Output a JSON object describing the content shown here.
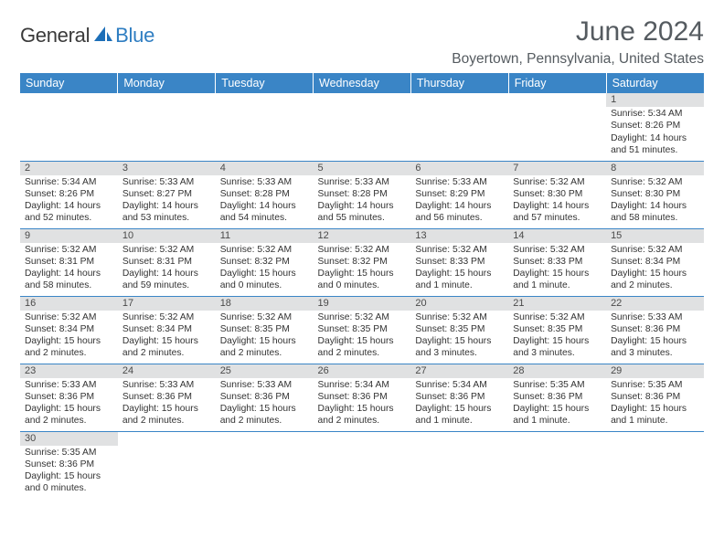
{
  "logo": {
    "word1": "General",
    "word2": "Blue"
  },
  "header": {
    "month_title": "June 2024",
    "location": "Boyertown, Pennsylvania, United States"
  },
  "colors": {
    "header_bg": "#3a85c6",
    "header_text": "#ffffff",
    "daynum_bg": "#e0e1e2",
    "row_border": "#3a85c6",
    "text": "#333333",
    "logo_dark": "#3a3a3a",
    "logo_blue": "#2f7ec2"
  },
  "weekdays": [
    "Sunday",
    "Monday",
    "Tuesday",
    "Wednesday",
    "Thursday",
    "Friday",
    "Saturday"
  ],
  "weeks": [
    [
      null,
      null,
      null,
      null,
      null,
      null,
      {
        "d": "1",
        "sr": "Sunrise: 5:34 AM",
        "ss": "Sunset: 8:26 PM",
        "dl1": "Daylight: 14 hours",
        "dl2": "and 51 minutes."
      }
    ],
    [
      {
        "d": "2",
        "sr": "Sunrise: 5:34 AM",
        "ss": "Sunset: 8:26 PM",
        "dl1": "Daylight: 14 hours",
        "dl2": "and 52 minutes."
      },
      {
        "d": "3",
        "sr": "Sunrise: 5:33 AM",
        "ss": "Sunset: 8:27 PM",
        "dl1": "Daylight: 14 hours",
        "dl2": "and 53 minutes."
      },
      {
        "d": "4",
        "sr": "Sunrise: 5:33 AM",
        "ss": "Sunset: 8:28 PM",
        "dl1": "Daylight: 14 hours",
        "dl2": "and 54 minutes."
      },
      {
        "d": "5",
        "sr": "Sunrise: 5:33 AM",
        "ss": "Sunset: 8:28 PM",
        "dl1": "Daylight: 14 hours",
        "dl2": "and 55 minutes."
      },
      {
        "d": "6",
        "sr": "Sunrise: 5:33 AM",
        "ss": "Sunset: 8:29 PM",
        "dl1": "Daylight: 14 hours",
        "dl2": "and 56 minutes."
      },
      {
        "d": "7",
        "sr": "Sunrise: 5:32 AM",
        "ss": "Sunset: 8:30 PM",
        "dl1": "Daylight: 14 hours",
        "dl2": "and 57 minutes."
      },
      {
        "d": "8",
        "sr": "Sunrise: 5:32 AM",
        "ss": "Sunset: 8:30 PM",
        "dl1": "Daylight: 14 hours",
        "dl2": "and 58 minutes."
      }
    ],
    [
      {
        "d": "9",
        "sr": "Sunrise: 5:32 AM",
        "ss": "Sunset: 8:31 PM",
        "dl1": "Daylight: 14 hours",
        "dl2": "and 58 minutes."
      },
      {
        "d": "10",
        "sr": "Sunrise: 5:32 AM",
        "ss": "Sunset: 8:31 PM",
        "dl1": "Daylight: 14 hours",
        "dl2": "and 59 minutes."
      },
      {
        "d": "11",
        "sr": "Sunrise: 5:32 AM",
        "ss": "Sunset: 8:32 PM",
        "dl1": "Daylight: 15 hours",
        "dl2": "and 0 minutes."
      },
      {
        "d": "12",
        "sr": "Sunrise: 5:32 AM",
        "ss": "Sunset: 8:32 PM",
        "dl1": "Daylight: 15 hours",
        "dl2": "and 0 minutes."
      },
      {
        "d": "13",
        "sr": "Sunrise: 5:32 AM",
        "ss": "Sunset: 8:33 PM",
        "dl1": "Daylight: 15 hours",
        "dl2": "and 1 minute."
      },
      {
        "d": "14",
        "sr": "Sunrise: 5:32 AM",
        "ss": "Sunset: 8:33 PM",
        "dl1": "Daylight: 15 hours",
        "dl2": "and 1 minute."
      },
      {
        "d": "15",
        "sr": "Sunrise: 5:32 AM",
        "ss": "Sunset: 8:34 PM",
        "dl1": "Daylight: 15 hours",
        "dl2": "and 2 minutes."
      }
    ],
    [
      {
        "d": "16",
        "sr": "Sunrise: 5:32 AM",
        "ss": "Sunset: 8:34 PM",
        "dl1": "Daylight: 15 hours",
        "dl2": "and 2 minutes."
      },
      {
        "d": "17",
        "sr": "Sunrise: 5:32 AM",
        "ss": "Sunset: 8:34 PM",
        "dl1": "Daylight: 15 hours",
        "dl2": "and 2 minutes."
      },
      {
        "d": "18",
        "sr": "Sunrise: 5:32 AM",
        "ss": "Sunset: 8:35 PM",
        "dl1": "Daylight: 15 hours",
        "dl2": "and 2 minutes."
      },
      {
        "d": "19",
        "sr": "Sunrise: 5:32 AM",
        "ss": "Sunset: 8:35 PM",
        "dl1": "Daylight: 15 hours",
        "dl2": "and 2 minutes."
      },
      {
        "d": "20",
        "sr": "Sunrise: 5:32 AM",
        "ss": "Sunset: 8:35 PM",
        "dl1": "Daylight: 15 hours",
        "dl2": "and 3 minutes."
      },
      {
        "d": "21",
        "sr": "Sunrise: 5:32 AM",
        "ss": "Sunset: 8:35 PM",
        "dl1": "Daylight: 15 hours",
        "dl2": "and 3 minutes."
      },
      {
        "d": "22",
        "sr": "Sunrise: 5:33 AM",
        "ss": "Sunset: 8:36 PM",
        "dl1": "Daylight: 15 hours",
        "dl2": "and 3 minutes."
      }
    ],
    [
      {
        "d": "23",
        "sr": "Sunrise: 5:33 AM",
        "ss": "Sunset: 8:36 PM",
        "dl1": "Daylight: 15 hours",
        "dl2": "and 2 minutes."
      },
      {
        "d": "24",
        "sr": "Sunrise: 5:33 AM",
        "ss": "Sunset: 8:36 PM",
        "dl1": "Daylight: 15 hours",
        "dl2": "and 2 minutes."
      },
      {
        "d": "25",
        "sr": "Sunrise: 5:33 AM",
        "ss": "Sunset: 8:36 PM",
        "dl1": "Daylight: 15 hours",
        "dl2": "and 2 minutes."
      },
      {
        "d": "26",
        "sr": "Sunrise: 5:34 AM",
        "ss": "Sunset: 8:36 PM",
        "dl1": "Daylight: 15 hours",
        "dl2": "and 2 minutes."
      },
      {
        "d": "27",
        "sr": "Sunrise: 5:34 AM",
        "ss": "Sunset: 8:36 PM",
        "dl1": "Daylight: 15 hours",
        "dl2": "and 1 minute."
      },
      {
        "d": "28",
        "sr": "Sunrise: 5:35 AM",
        "ss": "Sunset: 8:36 PM",
        "dl1": "Daylight: 15 hours",
        "dl2": "and 1 minute."
      },
      {
        "d": "29",
        "sr": "Sunrise: 5:35 AM",
        "ss": "Sunset: 8:36 PM",
        "dl1": "Daylight: 15 hours",
        "dl2": "and 1 minute."
      }
    ],
    [
      {
        "d": "30",
        "sr": "Sunrise: 5:35 AM",
        "ss": "Sunset: 8:36 PM",
        "dl1": "Daylight: 15 hours",
        "dl2": "and 0 minutes."
      },
      null,
      null,
      null,
      null,
      null,
      null
    ]
  ]
}
